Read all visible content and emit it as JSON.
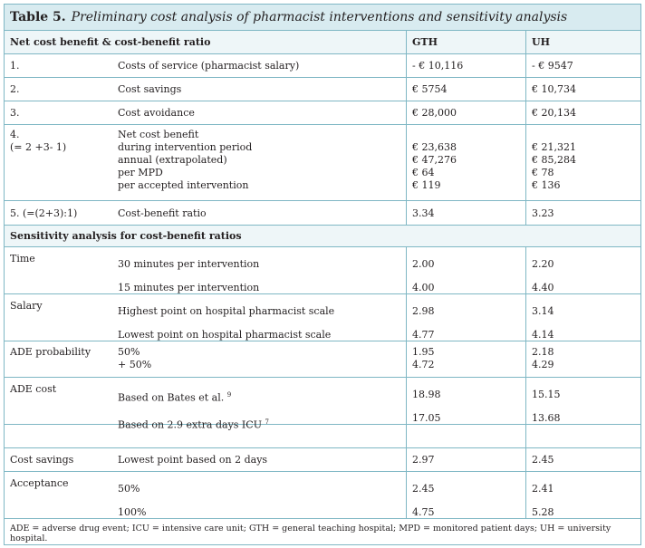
{
  "title": {
    "number": "Table 5.",
    "text": "Preliminary cost analysis of pharmacist interventions and sensitivity analysis"
  },
  "header": {
    "col1": "Net cost benefit & cost-benefit ratio",
    "col_gth": "GTH",
    "col_uh": "UH"
  },
  "rows": [
    {
      "num": "1.",
      "label": "Costs of service (pharmacist salary)",
      "gth": "- € 10,116",
      "uh": "- € 9547"
    },
    {
      "num": "2.",
      "label": "Cost savings",
      "gth": "€ 5754",
      "uh": "€ 10,734"
    },
    {
      "num": "3.",
      "label": "Cost avoidance",
      "gth": "€ 28,000",
      "uh": "€ 20,134"
    },
    {
      "num": "4.",
      "num2": "(= 2 +3- 1)",
      "label_lines": [
        "Net cost benefit",
        "during intervention period",
        "annual (extrapolated)",
        "per MPD",
        "per accepted intervention"
      ],
      "gth_lines": [
        "€ 23,638",
        "€ 47,276",
        "€ 64",
        "€ 119"
      ],
      "uh_lines": [
        "€ 21,321",
        "€ 85,284",
        "€ 78",
        "€ 136"
      ]
    },
    {
      "num": "5. (=(2+3):1)",
      "label": "Cost-benefit ratio",
      "gth": "3.34",
      "uh": "3.23"
    }
  ],
  "sensitivity": {
    "heading": "Sensitivity analysis for cost-benefit ratios",
    "time": {
      "label": "Time",
      "r1": "30 minutes per intervention",
      "r1_gth": "2.00",
      "r1_uh": "2.20",
      "r2": "15 minutes per intervention",
      "r2_gth": "4.00",
      "r2_uh": "4.40"
    },
    "salary": {
      "label": "Salary",
      "r1": "Highest point on hospital pharmacist scale",
      "r1_gth": "2.98",
      "r1_uh": "3.14",
      "r2": "Lowest point on hospital pharmacist scale",
      "r2_gth": "4.77",
      "r2_uh": "4.14"
    },
    "ade_prob": {
      "label": "ADE probability",
      "l1": "50%",
      "l2": "+ 50%",
      "g1": "1.95",
      "g2": "4.72",
      "u1": "2.18",
      "u2": "4.29"
    },
    "ade_cost": {
      "label": "ADE cost",
      "r1": "Based on Bates et al.",
      "r1_sup": "9",
      "r1_gth": "18.98",
      "r1_uh": "15.15",
      "r2": "Based on 2.9 extra days ICU",
      "r2_sup": "7",
      "r2_gth": "17.05",
      "r2_uh": "13.68"
    },
    "cost_savings": {
      "label": "Cost savings",
      "r1": "Lowest point based on 2 days",
      "r1_gth": "2.97",
      "r1_uh": "2.45"
    },
    "acceptance": {
      "label": "Acceptance",
      "r1": "50%",
      "r1_gth": "2.45",
      "r1_uh": "2.41",
      "r2": "100%",
      "r2_gth": "4.75",
      "r2_uh": "5.28"
    }
  },
  "footer": "ADE = adverse drug event; ICU = intensive care unit; GTH = general teaching hospital; MPD = monitored patient days; UH = university hospital."
}
